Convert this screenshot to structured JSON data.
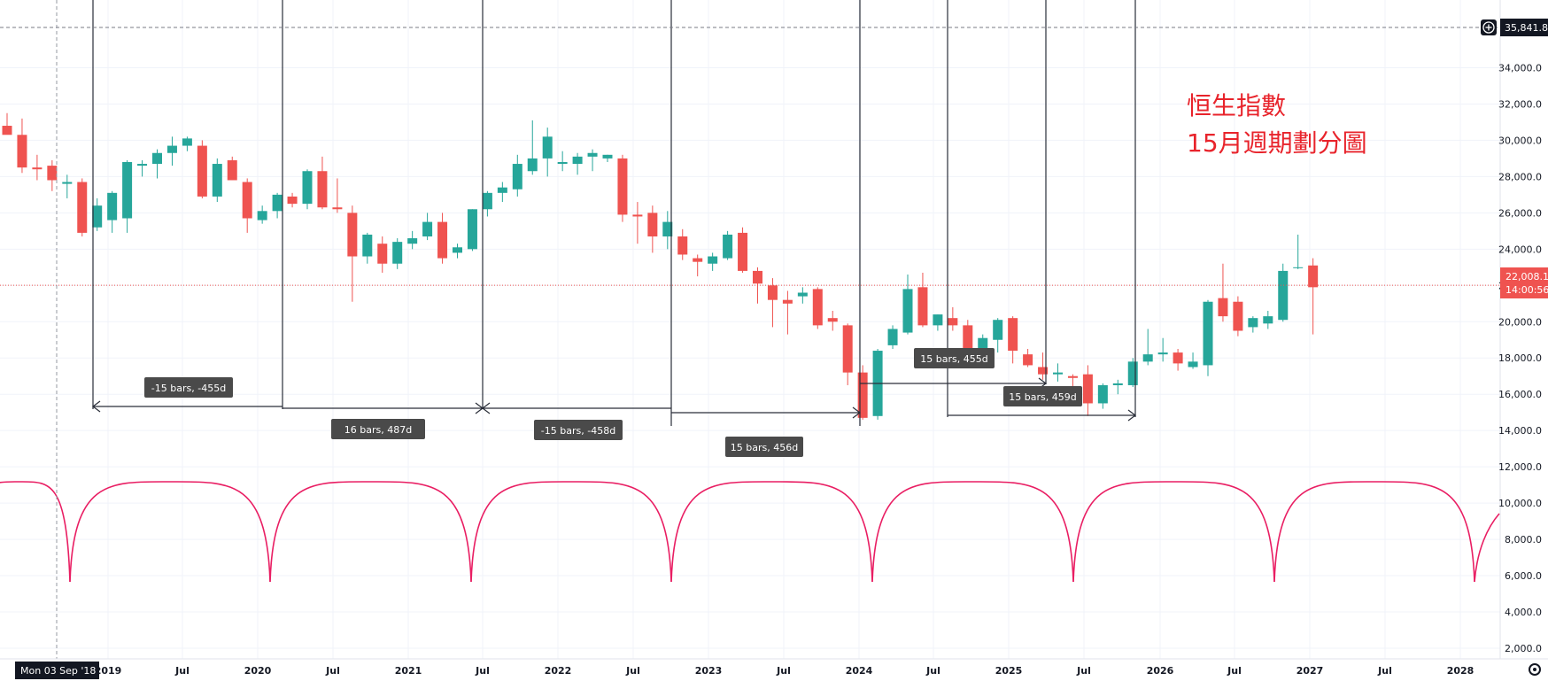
{
  "chart_data": {
    "type": "candlestick",
    "title_lines": [
      "恒生指數",
      "15月週期劃分圖"
    ],
    "y_range": [
      0,
      38000
    ],
    "y_ticks": [
      "2,000.0",
      "4,000.0",
      "6,000.0",
      "8,000.0",
      "10,000.0",
      "12,000.0",
      "14,000.0",
      "16,000.0",
      "18,000.0",
      "20,000.0",
      "22,000.0",
      "24,000.0",
      "26,000.0",
      "28,000.0",
      "30,000.0",
      "32,000.0",
      "34,000.0"
    ],
    "x_ticks": [
      "2019",
      "Jul",
      "2020",
      "Jul",
      "2021",
      "Jul",
      "2022",
      "Jul",
      "2023",
      "Jul",
      "2024",
      "Jul",
      "2025",
      "Jul",
      "2026",
      "Jul",
      "2027",
      "Jul",
      "2028"
    ],
    "crosshair": {
      "time_label": "Mon 03 Sep '18",
      "price_label": "35,841.8"
    },
    "last_price": {
      "price": "22,008.1",
      "countdown": "14:00:56",
      "value": 22008
    },
    "colors": {
      "up": "#26a69a",
      "down": "#ef5350",
      "cycle": "#e91e63",
      "title": "#e8232b",
      "range_line": "#2a2e39"
    },
    "candles": [
      {
        "o": 30800,
        "h": 31500,
        "l": 30500,
        "c": 30300
      },
      {
        "o": 30300,
        "h": 31200,
        "l": 28200,
        "c": 28500
      },
      {
        "o": 28500,
        "h": 29200,
        "l": 27800,
        "c": 28400
      },
      {
        "o": 28600,
        "h": 28900,
        "l": 27200,
        "c": 27800
      },
      {
        "o": 27600,
        "h": 28100,
        "l": 26800,
        "c": 27700
      },
      {
        "o": 27700,
        "h": 27900,
        "l": 24700,
        "c": 24900
      },
      {
        "o": 25200,
        "h": 26800,
        "l": 25000,
        "c": 26400
      },
      {
        "o": 25600,
        "h": 27200,
        "l": 24900,
        "c": 27100
      },
      {
        "o": 25700,
        "h": 28900,
        "l": 24900,
        "c": 28800
      },
      {
        "o": 28600,
        "h": 28900,
        "l": 28000,
        "c": 28700
      },
      {
        "o": 28700,
        "h": 29500,
        "l": 27900,
        "c": 29300
      },
      {
        "o": 29300,
        "h": 30200,
        "l": 28600,
        "c": 29700
      },
      {
        "o": 29700,
        "h": 30200,
        "l": 29400,
        "c": 30100
      },
      {
        "o": 29700,
        "h": 30000,
        "l": 26800,
        "c": 26900
      },
      {
        "o": 26900,
        "h": 29000,
        "l": 26600,
        "c": 28700
      },
      {
        "o": 28900,
        "h": 29100,
        "l": 27800,
        "c": 27800
      },
      {
        "o": 27700,
        "h": 27900,
        "l": 24900,
        "c": 25700
      },
      {
        "o": 25600,
        "h": 26400,
        "l": 25400,
        "c": 26100
      },
      {
        "o": 26100,
        "h": 27100,
        "l": 25700,
        "c": 27000
      },
      {
        "o": 26900,
        "h": 27100,
        "l": 26300,
        "c": 26500
      },
      {
        "o": 26500,
        "h": 28400,
        "l": 26200,
        "c": 28300
      },
      {
        "o": 28300,
        "h": 29100,
        "l": 26200,
        "c": 26300
      },
      {
        "o": 26300,
        "h": 27900,
        "l": 26000,
        "c": 26200
      },
      {
        "o": 26000,
        "h": 26400,
        "l": 21100,
        "c": 23600
      },
      {
        "o": 23600,
        "h": 24900,
        "l": 23200,
        "c": 24800
      },
      {
        "o": 24300,
        "h": 24700,
        "l": 22700,
        "c": 23200
      },
      {
        "o": 23200,
        "h": 24600,
        "l": 22900,
        "c": 24400
      },
      {
        "o": 24300,
        "h": 25000,
        "l": 24000,
        "c": 24600
      },
      {
        "o": 24700,
        "h": 26000,
        "l": 24500,
        "c": 25500
      },
      {
        "o": 25500,
        "h": 26000,
        "l": 23200,
        "c": 23500
      },
      {
        "o": 23800,
        "h": 24300,
        "l": 23500,
        "c": 24100
      },
      {
        "o": 24000,
        "h": 26200,
        "l": 23900,
        "c": 26200
      },
      {
        "o": 26200,
        "h": 27200,
        "l": 25800,
        "c": 27100
      },
      {
        "o": 27100,
        "h": 27700,
        "l": 26600,
        "c": 27400
      },
      {
        "o": 27300,
        "h": 29200,
        "l": 26900,
        "c": 28700
      },
      {
        "o": 28300,
        "h": 31100,
        "l": 28100,
        "c": 29000
      },
      {
        "o": 29000,
        "h": 30700,
        "l": 28000,
        "c": 30200
      },
      {
        "o": 28700,
        "h": 29400,
        "l": 28300,
        "c": 28800
      },
      {
        "o": 28700,
        "h": 29300,
        "l": 28100,
        "c": 29100
      },
      {
        "o": 29100,
        "h": 29500,
        "l": 28300,
        "c": 29300
      },
      {
        "o": 29000,
        "h": 29200,
        "l": 28800,
        "c": 29200
      },
      {
        "o": 29000,
        "h": 29200,
        "l": 25500,
        "c": 25900
      },
      {
        "o": 25900,
        "h": 26600,
        "l": 24300,
        "c": 25800
      },
      {
        "o": 26000,
        "h": 26400,
        "l": 23800,
        "c": 24700
      },
      {
        "o": 24700,
        "h": 26100,
        "l": 24000,
        "c": 25500
      },
      {
        "o": 24700,
        "h": 25100,
        "l": 23400,
        "c": 23700
      },
      {
        "o": 23500,
        "h": 23700,
        "l": 22500,
        "c": 23300
      },
      {
        "o": 23200,
        "h": 23800,
        "l": 22800,
        "c": 23600
      },
      {
        "o": 23500,
        "h": 25000,
        "l": 23400,
        "c": 24800
      },
      {
        "o": 24900,
        "h": 25200,
        "l": 22700,
        "c": 22800
      },
      {
        "o": 22800,
        "h": 23000,
        "l": 21000,
        "c": 22100
      },
      {
        "o": 22000,
        "h": 22400,
        "l": 19700,
        "c": 21200
      },
      {
        "o": 21200,
        "h": 21700,
        "l": 19300,
        "c": 21000
      },
      {
        "o": 21400,
        "h": 21900,
        "l": 21000,
        "c": 21600
      },
      {
        "o": 21800,
        "h": 21900,
        "l": 19600,
        "c": 19800
      },
      {
        "o": 20200,
        "h": 20600,
        "l": 19500,
        "c": 20000
      },
      {
        "o": 19800,
        "h": 19900,
        "l": 16500,
        "c": 17200
      },
      {
        "o": 17200,
        "h": 17600,
        "l": 14600,
        "c": 14700
      },
      {
        "o": 14800,
        "h": 18500,
        "l": 14600,
        "c": 18400
      },
      {
        "o": 18700,
        "h": 19800,
        "l": 18500,
        "c": 19600
      },
      {
        "o": 19400,
        "h": 22600,
        "l": 19300,
        "c": 21800
      },
      {
        "o": 21900,
        "h": 22700,
        "l": 19700,
        "c": 19800
      },
      {
        "o": 19800,
        "h": 20400,
        "l": 19500,
        "c": 20400
      },
      {
        "o": 20200,
        "h": 20800,
        "l": 19500,
        "c": 19800
      },
      {
        "o": 19800,
        "h": 20100,
        "l": 18200,
        "c": 18300
      },
      {
        "o": 18200,
        "h": 19300,
        "l": 18000,
        "c": 19100
      },
      {
        "o": 19000,
        "h": 20200,
        "l": 18300,
        "c": 20100
      },
      {
        "o": 20200,
        "h": 20300,
        "l": 17700,
        "c": 18400
      },
      {
        "o": 18200,
        "h": 18500,
        "l": 17500,
        "c": 17600
      },
      {
        "o": 17500,
        "h": 18300,
        "l": 16800,
        "c": 17100
      },
      {
        "o": 17100,
        "h": 17700,
        "l": 16700,
        "c": 17200
      },
      {
        "o": 17000,
        "h": 17100,
        "l": 15900,
        "c": 16900
      },
      {
        "o": 17100,
        "h": 17600,
        "l": 14800,
        "c": 15500
      },
      {
        "o": 15500,
        "h": 16600,
        "l": 15200,
        "c": 16500
      },
      {
        "o": 16500,
        "h": 16800,
        "l": 16000,
        "c": 16600
      },
      {
        "o": 16500,
        "h": 18000,
        "l": 16400,
        "c": 17800
      },
      {
        "o": 17800,
        "h": 19600,
        "l": 17600,
        "c": 18200
      },
      {
        "o": 18200,
        "h": 19100,
        "l": 17800,
        "c": 18300
      },
      {
        "o": 18300,
        "h": 18500,
        "l": 17300,
        "c": 17700
      },
      {
        "o": 17500,
        "h": 18300,
        "l": 17400,
        "c": 17800
      },
      {
        "o": 17600,
        "h": 21200,
        "l": 17000,
        "c": 21100
      },
      {
        "o": 21300,
        "h": 23200,
        "l": 20000,
        "c": 20300
      },
      {
        "o": 21100,
        "h": 21400,
        "l": 19200,
        "c": 19500
      },
      {
        "o": 19700,
        "h": 20300,
        "l": 19400,
        "c": 20200
      },
      {
        "o": 19900,
        "h": 20600,
        "l": 19600,
        "c": 20300
      },
      {
        "o": 20100,
        "h": 23200,
        "l": 20000,
        "c": 22800
      },
      {
        "o": 23000,
        "h": 24800,
        "l": 22900,
        "c": 23000
      },
      {
        "o": 23100,
        "h": 23500,
        "l": 19300,
        "c": 21900
      }
    ],
    "measure_labels": [
      "-15 bars, -455d",
      "16 bars, 487d",
      "-15 bars, -458d",
      "15 bars, 456d",
      "15 bars, 455d",
      "15 bars, 459d"
    ]
  }
}
